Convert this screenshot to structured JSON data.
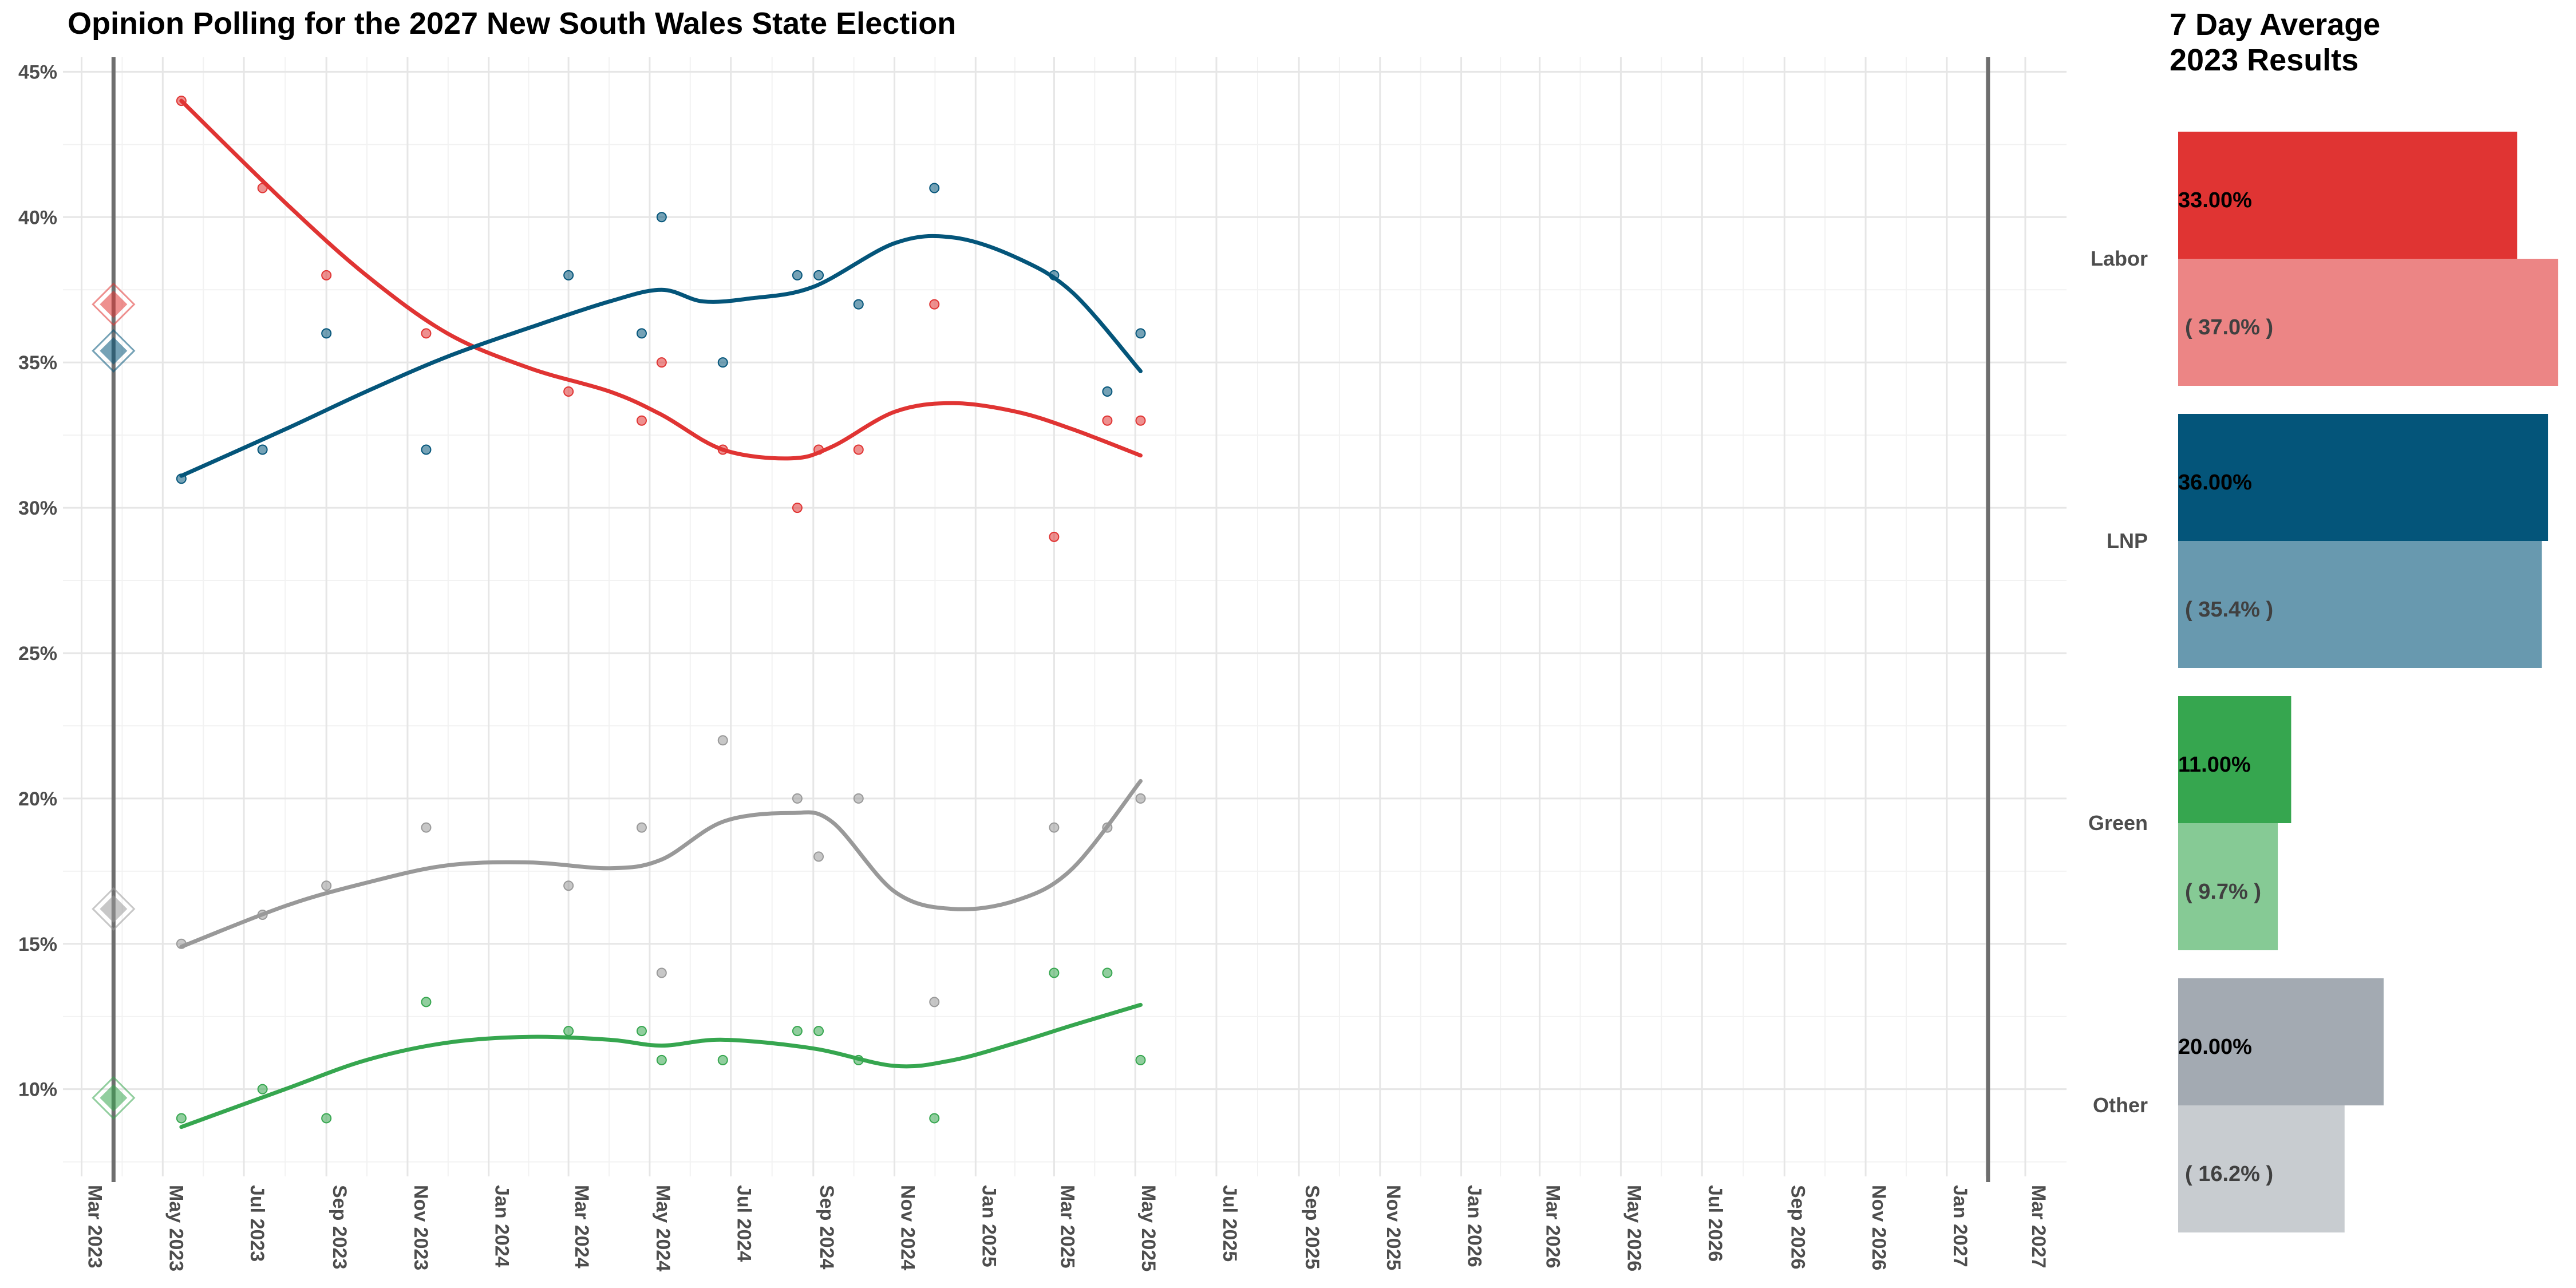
{
  "title": "Opinion Polling for the 2027 New South Wales State Election",
  "side_title": [
    "7 Day Average",
    "2023 Results"
  ],
  "colors": {
    "Labor": "#e03433",
    "LNP": "#04557a",
    "Green": "#36a64f",
    "Other": "#999999"
  },
  "chart_data": [
    {
      "type": "scatter",
      "title": "Opinion Polling for the 2027 New South Wales State Election",
      "x_type": "date",
      "xlim": [
        "2023-02-15",
        "2027-04-01"
      ],
      "ylim": [
        7,
        45.5
      ],
      "y_ticks": [
        10,
        15,
        20,
        25,
        30,
        35,
        40,
        45
      ],
      "y_tick_labels": [
        "10%",
        "15%",
        "20%",
        "25%",
        "30%",
        "35%",
        "40%",
        "45%"
      ],
      "x_ticks": [
        "2023-03-01",
        "2023-05-01",
        "2023-07-01",
        "2023-09-01",
        "2023-11-01",
        "2024-01-01",
        "2024-03-01",
        "2024-05-01",
        "2024-07-01",
        "2024-09-01",
        "2024-11-01",
        "2025-01-01",
        "2025-03-01",
        "2025-05-01",
        "2025-07-01",
        "2025-09-01",
        "2025-11-01",
        "2026-01-01",
        "2026-03-01",
        "2026-05-01",
        "2026-07-01",
        "2026-09-01",
        "2026-11-01",
        "2027-01-01",
        "2027-03-01"
      ],
      "x_tick_labels": [
        "Mar 2023",
        "May 2023",
        "Jul 2023",
        "Sep 2023",
        "Nov 2023",
        "Jan 2024",
        "Mar 2024",
        "May 2024",
        "Jul 2024",
        "Sep 2024",
        "Nov 2024",
        "Jan 2025",
        "Mar 2025",
        "May 2025",
        "Jul 2025",
        "Sep 2025",
        "Nov 2025",
        "Jan 2026",
        "Mar 2026",
        "May 2026",
        "Jul 2026",
        "Sep 2026",
        "Nov 2026",
        "Jan 2027",
        "Mar 2027"
      ],
      "vlines": [
        "2023-03-25",
        "2027-02-01"
      ],
      "grid": true,
      "election_markers": [
        {
          "series": "Labor",
          "x": "2023-03-25",
          "y": 37.0
        },
        {
          "series": "LNP",
          "x": "2023-03-25",
          "y": 35.4
        },
        {
          "series": "Green",
          "x": "2023-03-25",
          "y": 9.7
        },
        {
          "series": "Other",
          "x": "2023-03-25",
          "y": 16.2
        }
      ],
      "series": [
        {
          "name": "Labor",
          "points": [
            [
              "2023-05-15",
              44
            ],
            [
              "2023-07-15",
              41
            ],
            [
              "2023-09-01",
              38
            ],
            [
              "2023-11-15",
              36
            ],
            [
              "2024-03-01",
              34
            ],
            [
              "2024-04-25",
              33
            ],
            [
              "2024-05-10",
              35
            ],
            [
              "2024-06-25",
              32
            ],
            [
              "2024-08-20",
              30
            ],
            [
              "2024-09-05",
              32
            ],
            [
              "2024-10-05",
              32
            ],
            [
              "2024-12-01",
              37
            ],
            [
              "2025-03-01",
              29
            ],
            [
              "2025-04-10",
              33
            ],
            [
              "2025-05-05",
              33
            ]
          ],
          "trend": [
            [
              "2023-05-15",
              44.0
            ],
            [
              "2023-08-01",
              40.5
            ],
            [
              "2023-10-01",
              38.0
            ],
            [
              "2023-12-01",
              36.0
            ],
            [
              "2024-02-01",
              34.8
            ],
            [
              "2024-04-01",
              34.0
            ],
            [
              "2024-05-10",
              33.2
            ],
            [
              "2024-06-25",
              32.0
            ],
            [
              "2024-08-15",
              31.7
            ],
            [
              "2024-09-15",
              32.1
            ],
            [
              "2024-11-01",
              33.3
            ],
            [
              "2024-12-15",
              33.6
            ],
            [
              "2025-02-01",
              33.3
            ],
            [
              "2025-03-15",
              32.7
            ],
            [
              "2025-05-05",
              31.8
            ]
          ]
        },
        {
          "name": "LNP",
          "points": [
            [
              "2023-05-15",
              31
            ],
            [
              "2023-07-15",
              32
            ],
            [
              "2023-09-01",
              36
            ],
            [
              "2023-11-15",
              32
            ],
            [
              "2024-03-01",
              38
            ],
            [
              "2024-04-25",
              36
            ],
            [
              "2024-05-10",
              40
            ],
            [
              "2024-06-25",
              35
            ],
            [
              "2024-08-20",
              38
            ],
            [
              "2024-09-05",
              38
            ],
            [
              "2024-10-05",
              37
            ],
            [
              "2024-12-01",
              41
            ],
            [
              "2025-03-01",
              38
            ],
            [
              "2025-04-10",
              34
            ],
            [
              "2025-05-05",
              36
            ]
          ],
          "trend": [
            [
              "2023-05-15",
              31.1
            ],
            [
              "2023-08-01",
              32.7
            ],
            [
              "2023-10-01",
              34.0
            ],
            [
              "2023-12-01",
              35.2
            ],
            [
              "2024-02-01",
              36.2
            ],
            [
              "2024-04-01",
              37.1
            ],
            [
              "2024-05-10",
              37.5
            ],
            [
              "2024-06-10",
              37.1
            ],
            [
              "2024-07-15",
              37.2
            ],
            [
              "2024-09-01",
              37.6
            ],
            [
              "2024-11-01",
              39.1
            ],
            [
              "2024-12-15",
              39.3
            ],
            [
              "2025-02-01",
              38.6
            ],
            [
              "2025-03-15",
              37.4
            ],
            [
              "2025-05-05",
              34.7
            ]
          ]
        },
        {
          "name": "Green",
          "points": [
            [
              "2023-05-15",
              9
            ],
            [
              "2023-07-15",
              10
            ],
            [
              "2023-09-01",
              9
            ],
            [
              "2023-11-15",
              13
            ],
            [
              "2024-03-01",
              12
            ],
            [
              "2024-04-25",
              12
            ],
            [
              "2024-05-10",
              11
            ],
            [
              "2024-06-25",
              11
            ],
            [
              "2024-08-20",
              12
            ],
            [
              "2024-09-05",
              12
            ],
            [
              "2024-10-05",
              11
            ],
            [
              "2024-12-01",
              9
            ],
            [
              "2025-03-01",
              14
            ],
            [
              "2025-04-10",
              14
            ],
            [
              "2025-05-05",
              11
            ]
          ],
          "trend": [
            [
              "2023-05-15",
              8.7
            ],
            [
              "2023-08-01",
              10.0
            ],
            [
              "2023-10-01",
              11.0
            ],
            [
              "2023-12-01",
              11.6
            ],
            [
              "2024-02-01",
              11.8
            ],
            [
              "2024-04-01",
              11.7
            ],
            [
              "2024-05-10",
              11.5
            ],
            [
              "2024-06-25",
              11.7
            ],
            [
              "2024-09-01",
              11.4
            ],
            [
              "2024-11-01",
              10.8
            ],
            [
              "2024-12-15",
              11.0
            ],
            [
              "2025-02-01",
              11.6
            ],
            [
              "2025-03-15",
              12.2
            ],
            [
              "2025-05-05",
              12.9
            ]
          ]
        },
        {
          "name": "Other",
          "points": [
            [
              "2023-05-15",
              15
            ],
            [
              "2023-07-15",
              16
            ],
            [
              "2023-09-01",
              17
            ],
            [
              "2023-11-15",
              19
            ],
            [
              "2024-03-01",
              17
            ],
            [
              "2024-04-25",
              19
            ],
            [
              "2024-05-10",
              14
            ],
            [
              "2024-06-25",
              22
            ],
            [
              "2024-08-20",
              20
            ],
            [
              "2024-09-05",
              18
            ],
            [
              "2024-10-05",
              20
            ],
            [
              "2024-12-01",
              13
            ],
            [
              "2025-03-01",
              19
            ],
            [
              "2025-04-10",
              19
            ],
            [
              "2025-05-05",
              20
            ]
          ],
          "trend": [
            [
              "2023-05-15",
              14.9
            ],
            [
              "2023-08-01",
              16.3
            ],
            [
              "2023-10-01",
              17.1
            ],
            [
              "2023-12-01",
              17.7
            ],
            [
              "2024-02-01",
              17.8
            ],
            [
              "2024-04-01",
              17.6
            ],
            [
              "2024-05-10",
              17.9
            ],
            [
              "2024-06-25",
              19.2
            ],
            [
              "2024-08-15",
              19.5
            ],
            [
              "2024-09-15",
              19.2
            ],
            [
              "2024-11-01",
              16.8
            ],
            [
              "2024-12-15",
              16.2
            ],
            [
              "2025-02-01",
              16.5
            ],
            [
              "2025-03-15",
              17.6
            ],
            [
              "2025-05-05",
              20.6
            ]
          ]
        }
      ]
    },
    {
      "type": "bar",
      "title": "7 Day Average\n2023 Results",
      "categories": [
        "Labor",
        "LNP",
        "Green",
        "Other"
      ],
      "series": [
        {
          "name": "7 Day Average",
          "values": [
            33.0,
            36.0,
            11.0,
            20.0
          ],
          "labels": [
            "33.00%",
            "36.00%",
            "11.00%",
            "20.00%"
          ]
        },
        {
          "name": "2023 Results",
          "values": [
            37.0,
            35.4,
            9.7,
            16.2
          ],
          "labels": [
            "( 37.0% )",
            "( 35.4% )",
            "( 9.7% )",
            "( 16.2% )"
          ]
        }
      ],
      "xlim": [
        0,
        37.5
      ]
    }
  ]
}
